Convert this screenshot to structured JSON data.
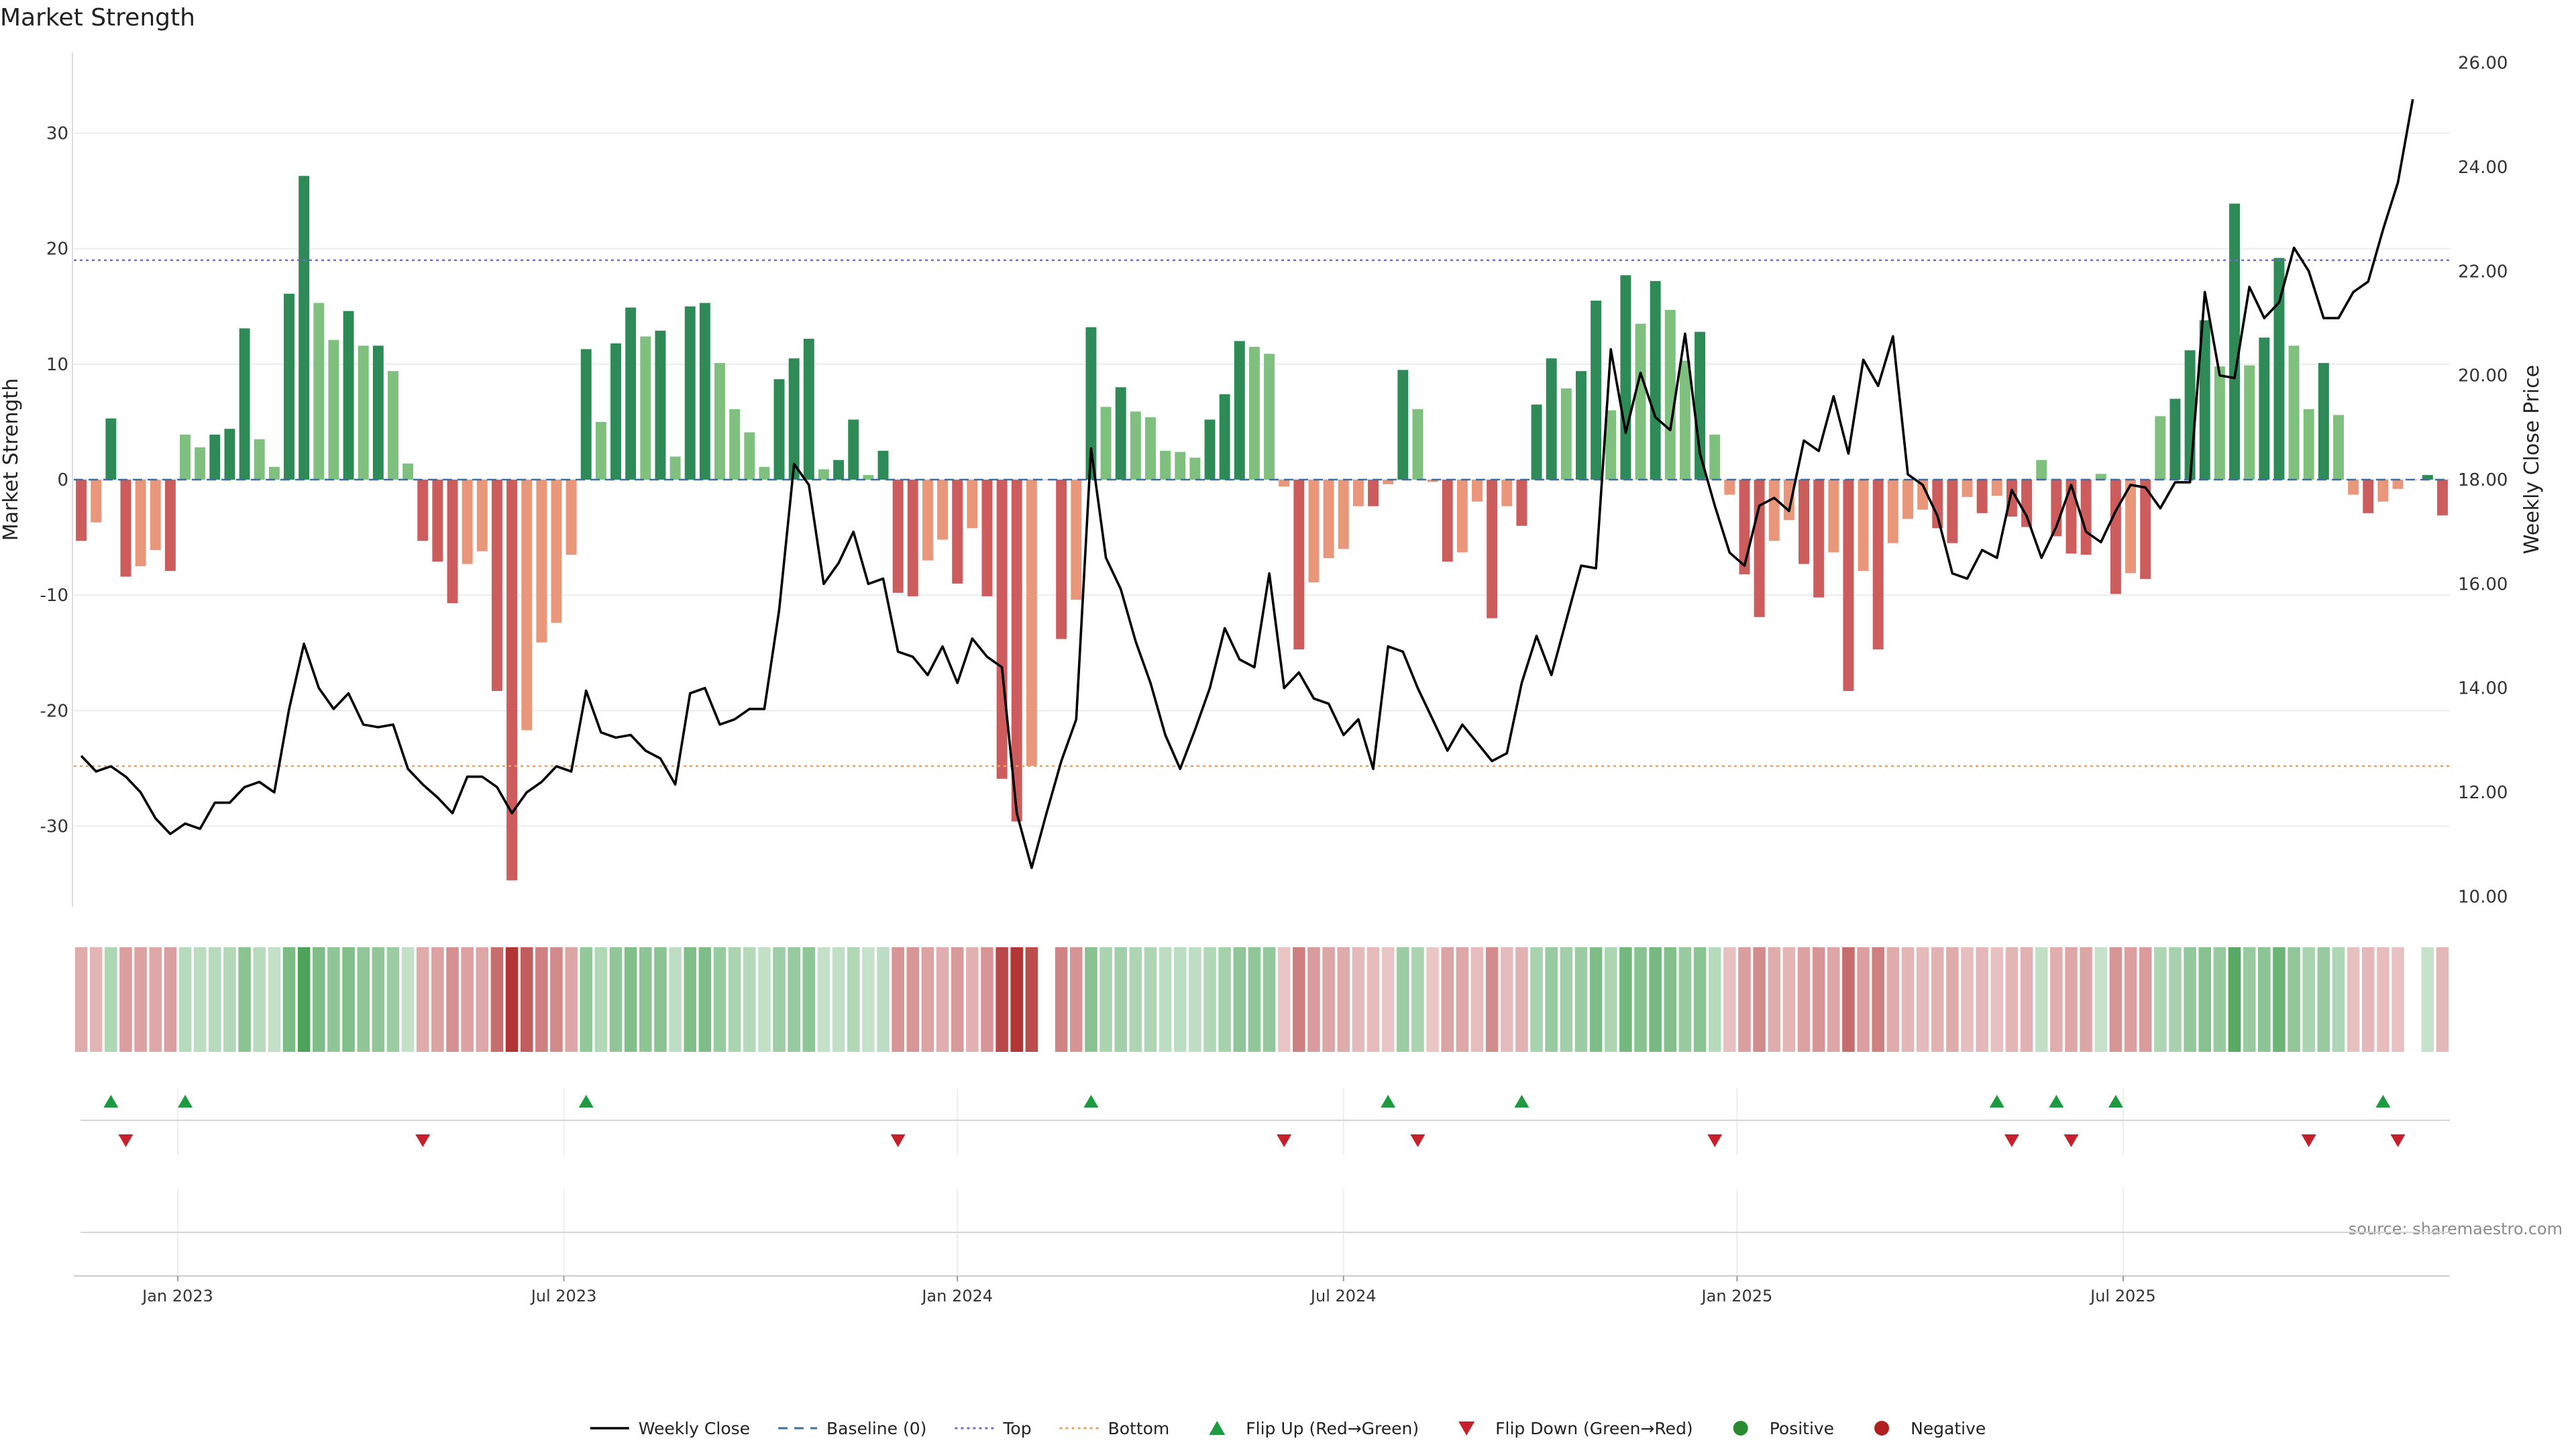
{
  "title": "Market Strength",
  "source": "source: sharemaestro.com",
  "legend": [
    {
      "label": "Weekly Close",
      "kind": "line",
      "color": "#000000"
    },
    {
      "label": "Baseline (0)",
      "kind": "dash",
      "color": "#3b6fa0"
    },
    {
      "label": "Top",
      "kind": "dotted",
      "color": "#7b68c8"
    },
    {
      "label": "Bottom",
      "kind": "dotted",
      "color": "#e8a060"
    },
    {
      "label": "Flip Up (Red→Green)",
      "kind": "tri-up",
      "color": "#1e9a40"
    },
    {
      "label": "Flip Down (Green→Red)",
      "kind": "tri-down",
      "color": "#c8202a"
    },
    {
      "label": "Positive",
      "kind": "dot",
      "color": "#2a8a30"
    },
    {
      "label": "Negative",
      "kind": "dot",
      "color": "#b02020"
    }
  ],
  "colors": {
    "strong_green": "#2e8b57",
    "light_green": "#7fc07f",
    "strong_red": "#cd5c5c",
    "light_red": "#e9967a",
    "price_line": "#000000",
    "top_line": "#7b68c8",
    "bottom_line": "#e8a060",
    "baseline": "#3b6fa0"
  },
  "chart_data": {
    "type": "bar",
    "title": "Market Strength",
    "ylabel": "Market Strength",
    "y2label": "Weekly Close Price",
    "ylim": [
      -37,
      37
    ],
    "y2lim": [
      9.8,
      26.2
    ],
    "yticks": [
      -30,
      -20,
      -10,
      0,
      10,
      20,
      30
    ],
    "y2ticks": [
      "10.00",
      "12.00",
      "14.00",
      "16.00",
      "18.00",
      "20.00",
      "22.00",
      "24.00",
      "26.00"
    ],
    "x_tick_labels": [
      "Jan 2023",
      "Jul 2023",
      "Jan 2024",
      "Jul 2024",
      "Jan 2025",
      "Jul 2025"
    ],
    "x_tick_weeks": [
      7,
      33,
      59.5,
      85.5,
      112,
      138
    ],
    "top_threshold": 19,
    "bottom_threshold": -24.8,
    "grid": true,
    "legend_position": "bottom-center",
    "series": [
      {
        "name": "Market Strength",
        "kind": "bar",
        "values": [
          -5.3,
          -3.7,
          5.3,
          -8.4,
          -7.5,
          -6.1,
          -7.9,
          3.9,
          2.8,
          3.9,
          4.4,
          13.1,
          3.5,
          1.1,
          16.1,
          26.3,
          15.3,
          12.1,
          14.6,
          11.6,
          11.6,
          9.4,
          1.4,
          -5.3,
          -7.1,
          -10.7,
          -7.3,
          -6.2,
          -18.3,
          -34.7,
          -21.7,
          -14.1,
          -12.4,
          -6.5,
          11.3,
          5.0,
          11.8,
          14.9,
          12.4,
          12.9,
          2.0,
          15.0,
          15.3,
          10.1,
          6.1,
          4.1,
          1.1,
          8.7,
          10.5,
          12.2,
          0.9,
          1.7,
          5.2,
          0.4,
          2.5,
          -9.8,
          -10.1,
          -7.0,
          -5.2,
          -9.0,
          -4.2,
          -10.1,
          -25.9,
          -29.6,
          -24.8,
          0.0,
          -13.8,
          -10.4,
          13.2,
          6.3,
          8.0,
          5.9,
          5.4,
          2.5,
          2.4,
          1.9,
          5.2,
          7.4,
          12.0,
          11.5,
          10.9,
          -0.6,
          -14.7,
          -8.9,
          -6.8,
          -6.0,
          -2.3,
          -2.3,
          -0.4,
          9.5,
          6.1,
          -0.2,
          -7.1,
          -6.3,
          -1.9,
          -12.0,
          -2.3,
          -4.0,
          6.5,
          10.5,
          7.9,
          9.4,
          15.5,
          6.0,
          17.7,
          13.5,
          17.2,
          14.7,
          10.3,
          12.8,
          3.9,
          -1.3,
          -8.2,
          -11.9,
          -5.3,
          -3.5,
          -7.3,
          -10.2,
          -6.3,
          -18.3,
          -7.9,
          -14.7,
          -5.5,
          -3.4,
          -2.6,
          -4.2,
          -5.5,
          -1.5,
          -2.9,
          -1.4,
          -3.2,
          -4.1,
          1.7,
          -4.9,
          -6.4,
          -6.5,
          0.5,
          -9.9,
          -8.1,
          -8.6,
          5.5,
          7.0,
          11.2,
          13.8,
          9.8,
          23.9,
          9.9,
          12.3,
          19.2,
          11.6,
          6.1,
          10.1,
          5.6,
          -1.3,
          -2.9,
          -1.9,
          -0.8,
          0.0,
          0.4,
          -3.1
        ]
      },
      {
        "name": "Weekly Close",
        "kind": "line",
        "values": [
          12.7,
          12.4,
          12.5,
          12.3,
          12.0,
          11.5,
          11.2,
          11.4,
          11.3,
          11.8,
          11.8,
          12.1,
          12.2,
          12.0,
          13.6,
          14.85,
          14.0,
          13.6,
          13.9,
          13.3,
          13.25,
          13.3,
          12.45,
          12.15,
          11.9,
          11.6,
          12.3,
          12.3,
          12.1,
          11.6,
          12.0,
          12.2,
          12.5,
          12.4,
          13.95,
          13.15,
          13.05,
          13.1,
          12.8,
          12.65,
          12.15,
          13.9,
          14.0,
          13.3,
          13.4,
          13.6,
          13.6,
          15.5,
          18.3,
          17.9,
          16.0,
          16.4,
          17.0,
          16.0,
          16.1,
          14.7,
          14.6,
          14.25,
          14.8,
          14.1,
          14.95,
          14.6,
          14.4,
          11.6,
          10.55,
          11.6,
          12.6,
          13.4,
          18.6,
          16.5,
          15.9,
          14.9,
          14.1,
          13.1,
          12.45,
          13.2,
          14.0,
          15.15,
          14.55,
          14.4,
          16.2,
          14.0,
          14.3,
          13.8,
          13.7,
          13.1,
          13.4,
          12.45,
          14.8,
          14.7,
          14.0,
          13.4,
          12.8,
          13.3,
          12.95,
          12.6,
          12.75,
          14.1,
          15.0,
          14.25,
          15.3,
          16.35,
          16.3,
          20.5,
          18.9,
          20.05,
          19.2,
          18.95,
          20.8,
          18.5,
          17.5,
          16.6,
          16.35,
          17.5,
          17.65,
          17.4,
          18.75,
          18.55,
          19.6,
          18.5,
          20.3,
          19.8,
          20.75,
          18.1,
          17.9,
          17.3,
          16.2,
          16.1,
          16.65,
          16.5,
          17.8,
          17.3,
          16.5,
          17.1,
          17.9,
          17.0,
          16.8,
          17.4,
          17.9,
          17.85,
          17.45,
          17.95,
          17.95,
          21.6,
          20.0,
          19.95,
          21.7,
          21.1,
          21.4,
          22.45,
          22.0,
          21.1,
          21.1,
          21.6,
          21.8,
          22.8,
          23.7,
          25.3
        ]
      }
    ],
    "flip_up_weeks": [
      2,
      7,
      34,
      68,
      88,
      97,
      129,
      133,
      137,
      155
    ],
    "flip_down_weeks": [
      3,
      23,
      55,
      81,
      90,
      110,
      130,
      134,
      150,
      156
    ]
  }
}
